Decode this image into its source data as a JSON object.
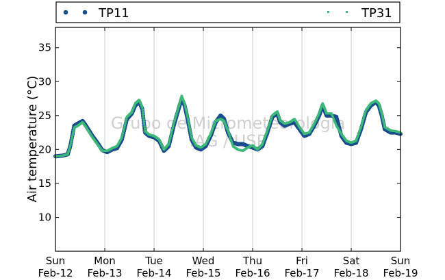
{
  "chart_data": {
    "type": "scatter",
    "ylabel": "Air temperature (°C)",
    "ylim": [
      5,
      38
    ],
    "yticks": [
      10,
      15,
      20,
      25,
      30,
      35
    ],
    "x_range_days": [
      0,
      7
    ],
    "x_ticks": [
      {
        "day": "Sun",
        "date": "Feb-12"
      },
      {
        "day": "Mon",
        "date": "Feb-13"
      },
      {
        "day": "Tue",
        "date": "Feb-14"
      },
      {
        "day": "Wed",
        "date": "Feb-15"
      },
      {
        "day": "Thu",
        "date": "Feb-16"
      },
      {
        "day": "Fri",
        "date": "Feb-17"
      },
      {
        "day": "Sat",
        "date": "Feb-18"
      },
      {
        "day": "Sun",
        "date": "Feb-19"
      }
    ],
    "grid": "vertical",
    "legend_placement": "top (above plot)",
    "watermark": [
      "Grupo de Micrometeorologia",
      "IAG / USP"
    ],
    "series": [
      {
        "name": "TP11",
        "color": "#1a4d8c",
        "marker": "dot",
        "points": [
          [
            0.0,
            19.0
          ],
          [
            0.15,
            19.1
          ],
          [
            0.25,
            19.3
          ],
          [
            0.3,
            20.5
          ],
          [
            0.38,
            23.5
          ],
          [
            0.45,
            23.8
          ],
          [
            0.55,
            24.2
          ],
          [
            0.62,
            23.5
          ],
          [
            0.75,
            22.0
          ],
          [
            0.85,
            21.0
          ],
          [
            0.95,
            19.9
          ],
          [
            1.05,
            19.6
          ],
          [
            1.15,
            20.0
          ],
          [
            1.25,
            20.2
          ],
          [
            1.35,
            21.5
          ],
          [
            1.45,
            24.5
          ],
          [
            1.55,
            25.3
          ],
          [
            1.62,
            26.5
          ],
          [
            1.7,
            27.0
          ],
          [
            1.76,
            26.0
          ],
          [
            1.82,
            22.5
          ],
          [
            1.9,
            22.0
          ],
          [
            2.0,
            21.8
          ],
          [
            2.1,
            21.3
          ],
          [
            2.2,
            19.8
          ],
          [
            2.3,
            20.5
          ],
          [
            2.4,
            23.5
          ],
          [
            2.5,
            26.0
          ],
          [
            2.56,
            27.5
          ],
          [
            2.62,
            26.5
          ],
          [
            2.68,
            24.5
          ],
          [
            2.76,
            21.5
          ],
          [
            2.85,
            20.3
          ],
          [
            2.95,
            20.0
          ],
          [
            3.05,
            20.5
          ],
          [
            3.15,
            22.0
          ],
          [
            3.25,
            24.0
          ],
          [
            3.35,
            25.0
          ],
          [
            3.42,
            24.5
          ],
          [
            3.5,
            22.5
          ],
          [
            3.6,
            21.0
          ],
          [
            3.7,
            20.8
          ],
          [
            3.8,
            20.8
          ],
          [
            3.9,
            20.5
          ],
          [
            4.0,
            20.3
          ],
          [
            4.1,
            20.0
          ],
          [
            4.2,
            20.5
          ],
          [
            4.3,
            22.5
          ],
          [
            4.4,
            24.8
          ],
          [
            4.5,
            25.3
          ],
          [
            4.56,
            24.0
          ],
          [
            4.65,
            23.5
          ],
          [
            4.75,
            23.8
          ],
          [
            4.85,
            24.0
          ],
          [
            4.95,
            23.0
          ],
          [
            5.05,
            22.0
          ],
          [
            5.15,
            22.3
          ],
          [
            5.25,
            23.5
          ],
          [
            5.35,
            25.0
          ],
          [
            5.42,
            26.5
          ],
          [
            5.5,
            25.0
          ],
          [
            5.6,
            25.0
          ],
          [
            5.7,
            24.8
          ],
          [
            5.8,
            22.0
          ],
          [
            5.9,
            21.0
          ],
          [
            6.0,
            20.8
          ],
          [
            6.1,
            21.0
          ],
          [
            6.2,
            23.0
          ],
          [
            6.3,
            25.5
          ],
          [
            6.4,
            26.5
          ],
          [
            6.5,
            27.0
          ],
          [
            6.56,
            26.5
          ],
          [
            6.62,
            25.0
          ],
          [
            6.68,
            23.0
          ],
          [
            6.8,
            22.5
          ],
          [
            6.9,
            22.5
          ],
          [
            7.0,
            22.3
          ]
        ]
      },
      {
        "name": "TP31",
        "color": "#3cb878",
        "marker": "point",
        "points": [
          [
            0.0,
            19.0
          ],
          [
            0.15,
            19.1
          ],
          [
            0.25,
            19.3
          ],
          [
            0.3,
            20.5
          ],
          [
            0.38,
            23.2
          ],
          [
            0.45,
            23.5
          ],
          [
            0.55,
            24.0
          ],
          [
            0.62,
            23.3
          ],
          [
            0.75,
            21.8
          ],
          [
            0.85,
            20.8
          ],
          [
            0.95,
            19.8
          ],
          [
            1.05,
            19.8
          ],
          [
            1.15,
            20.2
          ],
          [
            1.25,
            20.5
          ],
          [
            1.35,
            21.8
          ],
          [
            1.45,
            24.8
          ],
          [
            1.55,
            25.5
          ],
          [
            1.62,
            26.8
          ],
          [
            1.7,
            27.3
          ],
          [
            1.76,
            26.2
          ],
          [
            1.82,
            22.7
          ],
          [
            1.9,
            22.2
          ],
          [
            2.0,
            22.0
          ],
          [
            2.1,
            21.5
          ],
          [
            2.2,
            20.0
          ],
          [
            2.3,
            20.8
          ],
          [
            2.4,
            23.8
          ],
          [
            2.5,
            26.3
          ],
          [
            2.56,
            27.9
          ],
          [
            2.62,
            26.8
          ],
          [
            2.68,
            24.8
          ],
          [
            2.76,
            21.8
          ],
          [
            2.85,
            20.6
          ],
          [
            2.95,
            20.3
          ],
          [
            3.05,
            20.8
          ],
          [
            3.15,
            22.3
          ],
          [
            3.25,
            24.2
          ],
          [
            3.35,
            24.5
          ],
          [
            3.42,
            24.2
          ],
          [
            3.5,
            22.8
          ],
          [
            3.6,
            20.5
          ],
          [
            3.7,
            20.0
          ],
          [
            3.8,
            19.8
          ],
          [
            3.9,
            20.3
          ],
          [
            4.0,
            20.6
          ],
          [
            4.1,
            20.0
          ],
          [
            4.2,
            20.8
          ],
          [
            4.3,
            22.8
          ],
          [
            4.4,
            25.0
          ],
          [
            4.5,
            25.6
          ],
          [
            4.56,
            24.3
          ],
          [
            4.65,
            23.8
          ],
          [
            4.75,
            24.0
          ],
          [
            4.85,
            24.5
          ],
          [
            4.95,
            23.3
          ],
          [
            5.05,
            22.3
          ],
          [
            5.15,
            22.5
          ],
          [
            5.25,
            23.8
          ],
          [
            5.35,
            25.3
          ],
          [
            5.42,
            26.8
          ],
          [
            5.5,
            25.3
          ],
          [
            5.6,
            25.3
          ],
          [
            5.7,
            23.5
          ],
          [
            5.8,
            22.3
          ],
          [
            5.9,
            21.3
          ],
          [
            6.0,
            21.0
          ],
          [
            6.1,
            21.3
          ],
          [
            6.2,
            23.3
          ],
          [
            6.3,
            25.8
          ],
          [
            6.4,
            26.8
          ],
          [
            6.5,
            27.2
          ],
          [
            6.56,
            26.8
          ],
          [
            6.62,
            25.3
          ],
          [
            6.68,
            23.3
          ],
          [
            6.8,
            22.8
          ],
          [
            6.9,
            22.7
          ],
          [
            7.0,
            22.5
          ]
        ]
      }
    ]
  }
}
